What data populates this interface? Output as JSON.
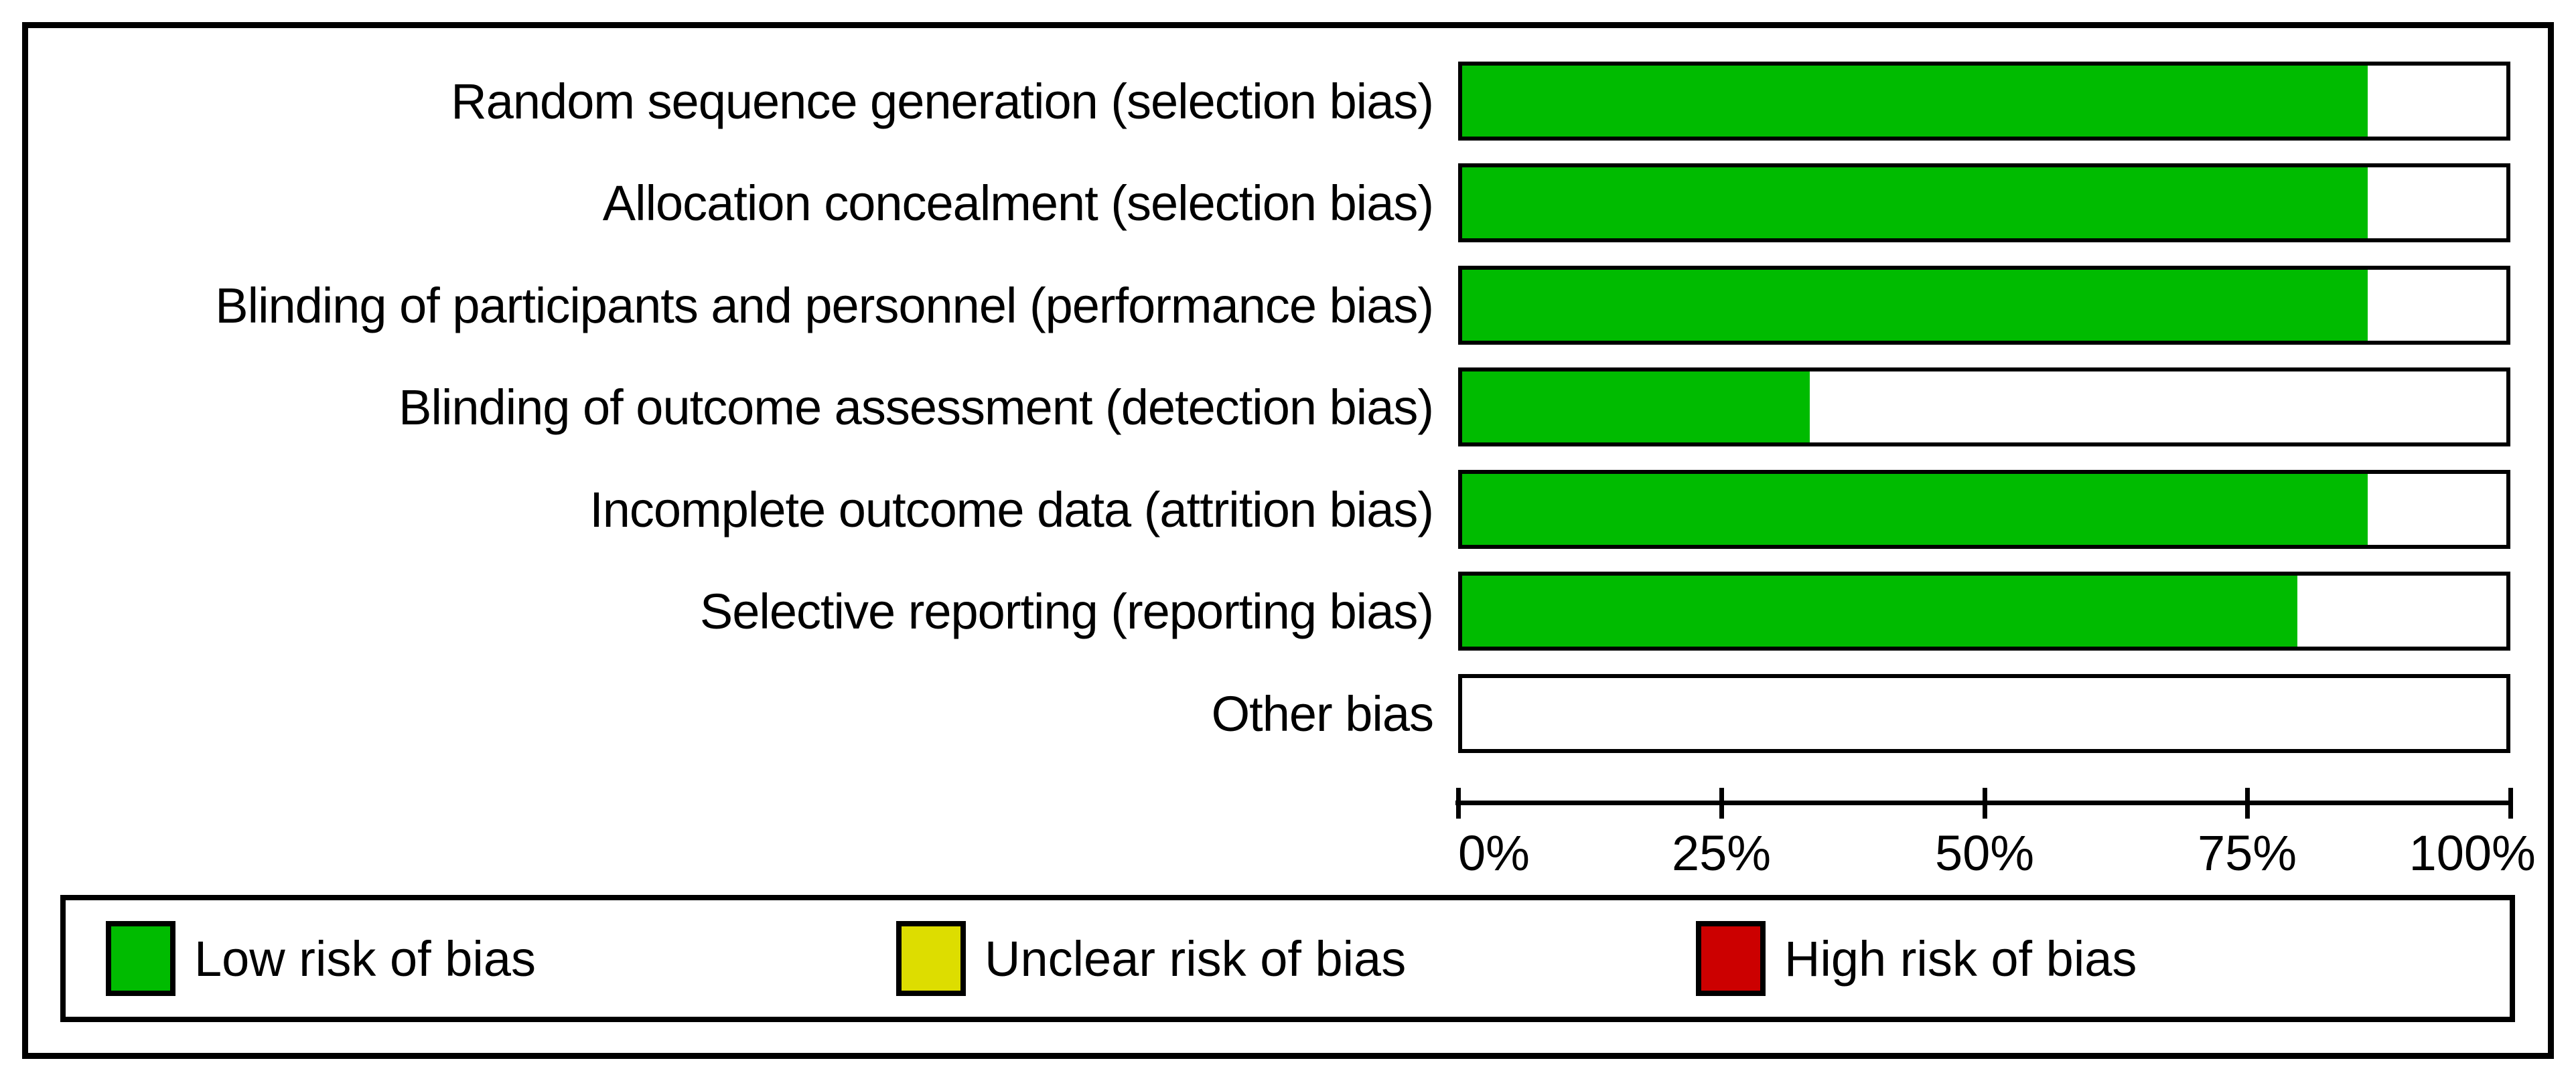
{
  "chart_data": {
    "type": "bar",
    "orientation": "horizontal",
    "stacked": true,
    "title": "",
    "xlabel": "",
    "ylabel": "",
    "xlim": [
      0,
      100
    ],
    "grid": false,
    "legend_position": "bottom",
    "categories": [
      "Random sequence generation (selection bias)",
      "Allocation concealment (selection bias)",
      "Blinding of participants and personnel (performance bias)",
      "Blinding of outcome assessment (detection bias)",
      "Incomplete outcome data (attrition bias)",
      "Selective reporting (reporting bias)",
      "Other bias"
    ],
    "series": [
      {
        "name": "Low risk of bias",
        "color": "#00BB00",
        "values": [
          86.7,
          86.7,
          86.7,
          33.3,
          86.7,
          80,
          0
        ]
      },
      {
        "name": "Unclear risk of bias",
        "color": "#DDDD00",
        "values": [
          0,
          0,
          0,
          0,
          0,
          0,
          0
        ]
      },
      {
        "name": "High risk of bias",
        "color": "#CC0000",
        "values": [
          0,
          0,
          0,
          0,
          0,
          0,
          0
        ]
      }
    ],
    "x_ticks": [
      "0%",
      "25%",
      "50%",
      "75%",
      "100%"
    ],
    "colors": {
      "bar_background": "#FFFFFF",
      "border": "#000000"
    }
  }
}
